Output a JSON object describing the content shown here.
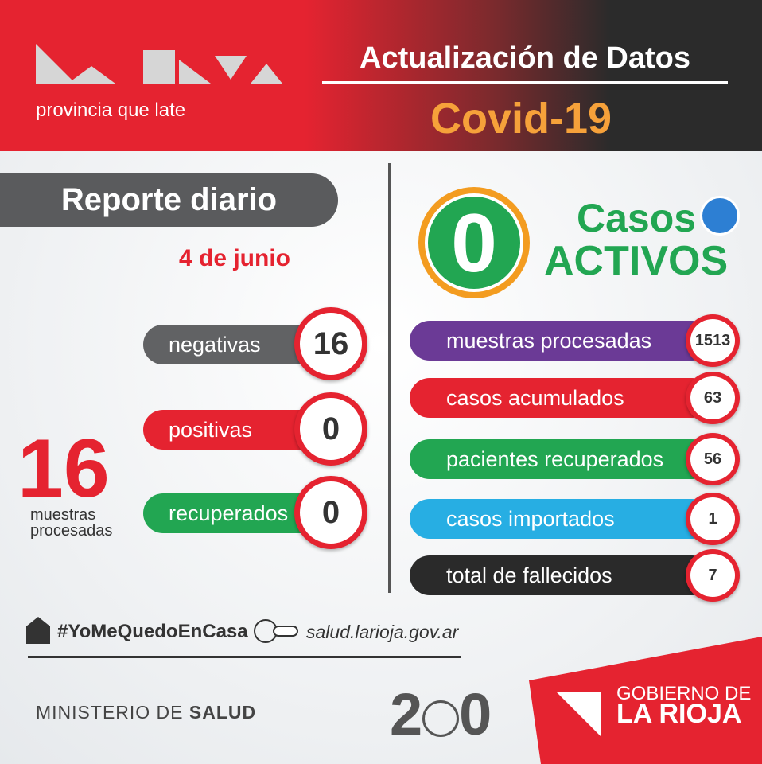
{
  "header": {
    "logo_text": "provincia que late",
    "title": "Actualización de Datos",
    "subtitle": "Covid-19"
  },
  "report": {
    "title": "Reporte diario",
    "date": "4 de junio",
    "total": 16,
    "total_label_1": "muestras",
    "total_label_2": "procesadas",
    "rows": [
      {
        "label": "negativas",
        "value": 16,
        "color": "#616264"
      },
      {
        "label": "positivas",
        "value": 0,
        "color": "#e52330"
      },
      {
        "label": "recuperados",
        "value": 0,
        "color": "#22a652"
      }
    ]
  },
  "active": {
    "value": 0,
    "label_1": "Casos",
    "label_2": "ACTIVOS"
  },
  "stats": [
    {
      "label": "muestras procesadas",
      "value": 1513,
      "color": "#6b3a96"
    },
    {
      "label": "casos acumulados",
      "value": 63,
      "color": "#e52330"
    },
    {
      "label": "pacientes recuperados",
      "value": 56,
      "color": "#22a652"
    },
    {
      "label": "casos importados",
      "value": 1,
      "color": "#27aee3"
    },
    {
      "label": "total de fallecidos",
      "value": 7,
      "color": "#2a2a2a"
    }
  ],
  "footer": {
    "hashtag": "#YoMeQuedoEnCasa",
    "website": "salud.larioja.gov.ar",
    "ministry_1": "MINISTERIO DE",
    "ministry_2": "SALUD",
    "anniversary": [
      "2",
      "0"
    ],
    "gov_1": "GOBIERNO DE",
    "gov_2": "LA RIOJA"
  }
}
